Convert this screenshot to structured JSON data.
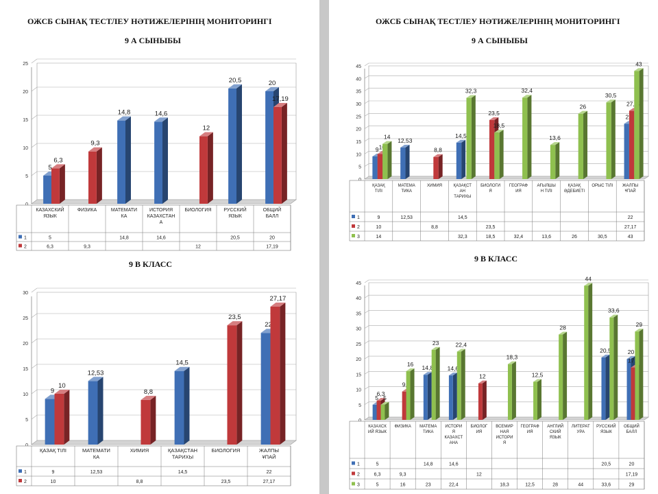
{
  "left_page": {
    "title": "ОЖСБ СЫНАҚ ТЕСТЛЕУ НӘТИЖЕЛЕРІНІҢ МОНИТОРИНГІ",
    "section1_title": "9 А СЫНЫБЫ",
    "section2_title": "9 В КЛАСС"
  },
  "right_page": {
    "title": "ОЖСБ СЫНАҚ ТЕСТЛЕУ НӘТИЖЕЛЕРІНІҢ МОНИТОРИНГІ",
    "section1_title": "9 А СЫНЫБЫ",
    "section2_title": "9 В КЛАСС"
  },
  "colors": {
    "s1": "#3f6fb5",
    "s2": "#c0393b",
    "s3": "#8fc04f"
  },
  "chart_data": [
    {
      "type": "bar",
      "id": "chart-left-top",
      "categories": [
        "КАЗАХСКИЙ|ЯЗЫК",
        "ФИЗИКА",
        "МАТЕМАТИ|КА",
        "ИСТОРИЯ|КАЗАХСТАН|А",
        "БИОЛОГИЯ",
        "РУССКИЙ|ЯЗЫК",
        "ОБЩИЙ|БАЛЛ"
      ],
      "ylim": [
        0,
        25
      ],
      "yticks": [
        0,
        5,
        10,
        15,
        20,
        25
      ],
      "series": [
        {
          "name": "1",
          "values": [
            5,
            null,
            14.8,
            14.6,
            null,
            20.5,
            20
          ],
          "labels": [
            "5",
            "",
            "14,8",
            "14,6",
            "",
            "20,5",
            "20"
          ]
        },
        {
          "name": "2",
          "values": [
            6.3,
            9.3,
            null,
            null,
            12,
            null,
            17.19
          ],
          "labels": [
            "6,3",
            "9,3",
            "",
            "",
            "12",
            "",
            "17,19"
          ]
        }
      ]
    },
    {
      "type": "bar",
      "id": "chart-left-bottom",
      "categories": [
        "ҚАЗАҚ ТІЛІ",
        "МАТЕМАТИ|КА",
        "ХИМИЯ",
        "ҚАЗАҚСТАН|ТАРИХЫ",
        "БИОЛОГИЯ",
        "ЖАЛПЫ|ҰПАЙ"
      ],
      "ylim": [
        0,
        30
      ],
      "yticks": [
        0,
        5,
        10,
        15,
        20,
        25,
        30
      ],
      "series": [
        {
          "name": "1",
          "values": [
            9,
            12.53,
            null,
            14.5,
            null,
            22
          ],
          "labels": [
            "9",
            "12,53",
            "",
            "14,5",
            "",
            "22"
          ]
        },
        {
          "name": "2",
          "values": [
            10,
            null,
            8.8,
            null,
            23.5,
            27.17
          ],
          "labels": [
            "10",
            "",
            "8,8",
            "",
            "23,5",
            "27,17"
          ]
        }
      ]
    },
    {
      "type": "bar",
      "id": "chart-right-top",
      "categories": [
        "ҚАЗАҚ|ТІЛІ",
        "МАТЕМА|ТИКА",
        "ХИМИЯ",
        "ҚАЗАҚСТ|АН|ТАРИХЫ",
        "БИОЛОГИ|Я",
        "ГЕОГРАФ|ИЯ",
        "АҒЫЛШЫ|Н ТІЛІ",
        "ҚАЗАҚ|ӘДЕБИЕТІ",
        "ОРЫС ТІЛІ",
        "ЖАЛПЫ|ҰПАЙ"
      ],
      "ylim": [
        0,
        45
      ],
      "yticks": [
        0,
        5,
        10,
        15,
        20,
        25,
        30,
        35,
        40,
        45
      ],
      "series": [
        {
          "name": "1",
          "values": [
            9,
            12.53,
            null,
            14.5,
            null,
            null,
            null,
            null,
            null,
            22
          ],
          "labels": [
            "9",
            "12,53",
            "",
            "14,5",
            "",
            "",
            "",
            "",
            "",
            "22"
          ]
        },
        {
          "name": "2",
          "values": [
            10,
            null,
            8.8,
            null,
            23.5,
            null,
            null,
            null,
            null,
            27.17
          ],
          "labels": [
            "10",
            "",
            "8,8",
            "",
            "23,5",
            "",
            "",
            "",
            "",
            "27,17"
          ]
        },
        {
          "name": "3",
          "values": [
            14,
            null,
            null,
            32.3,
            18.5,
            32.4,
            13.6,
            26,
            30.5,
            43
          ],
          "labels": [
            "14",
            "",
            "",
            "32,3",
            "18,5",
            "32,4",
            "13,6",
            "26",
            "30,5",
            "43"
          ]
        }
      ]
    },
    {
      "type": "bar",
      "id": "chart-right-bottom",
      "categories": [
        "КАЗАХСК|ИЙ ЯЗЫК",
        "ФИЗИКА",
        "МАТЕМА|ТИКА",
        "ИСТОРИ|Я|КАЗАХСТ|АНА",
        "БИОЛОГ|ИЯ",
        "ВСЕМИР|НАЯ|ИСТОРИ|Я",
        "ГЕОГРАФ|ИЯ",
        "АНГЛИЙ|СКИЙ|ЯЗЫК",
        "ЛИТЕРАТ|УРА",
        "РУССКИЙ|ЯЗЫК",
        "ОБЩИЙ|БАЛЛ"
      ],
      "ylim": [
        0,
        45
      ],
      "yticks": [
        0,
        5,
        10,
        15,
        20,
        25,
        30,
        35,
        40,
        45
      ],
      "series": [
        {
          "name": "1",
          "values": [
            5,
            null,
            14.8,
            14.6,
            null,
            null,
            null,
            null,
            null,
            20.5,
            20
          ],
          "labels": [
            "5",
            "",
            "14,8",
            "14,6",
            "",
            "",
            "",
            "",
            "",
            "20,5",
            "20"
          ]
        },
        {
          "name": "2",
          "values": [
            6.3,
            9.3,
            null,
            null,
            12,
            null,
            null,
            null,
            null,
            null,
            17.19
          ],
          "labels": [
            "6,3",
            "9,3",
            "",
            "",
            "12",
            "",
            "",
            "",
            "",
            "",
            "17,19"
          ]
        },
        {
          "name": "3",
          "values": [
            5,
            16,
            23,
            22.4,
            null,
            18.3,
            12.5,
            28,
            44,
            33.6,
            29
          ],
          "labels": [
            "5",
            "16",
            "23",
            "22,4",
            "",
            "18,3",
            "12,5",
            "28",
            "44",
            "33,6",
            "29"
          ]
        }
      ]
    }
  ]
}
